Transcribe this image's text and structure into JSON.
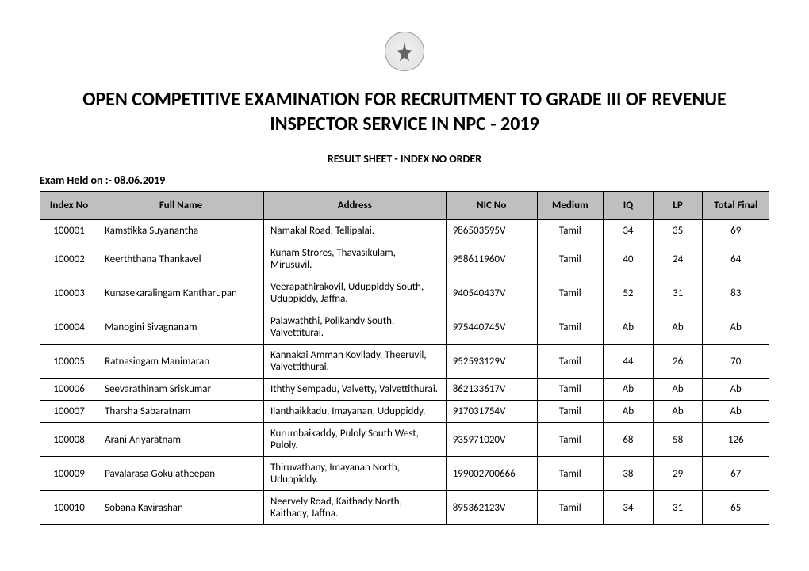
{
  "title": "OPEN COMPETITIVE EXAMINATION FOR RECRUITMENT TO GRADE III OF REVENUE INSPECTOR SERVICE IN NPC - 2019",
  "subtitle": "RESULT SHEET - INDEX NO ORDER",
  "exam_date": "Exam Held on :- 08.06.2019",
  "table": {
    "columns": [
      "Index No",
      "Full Name",
      "Address",
      "NIC No",
      "Medium",
      "IQ",
      "LP",
      "Total Final"
    ],
    "header_bg": "#bfbfbf",
    "border_color": "#000000",
    "rows": [
      {
        "index": "100001",
        "name": "Kamstikka Suyanantha",
        "address": "Namakal Road, Tellipalai.",
        "nic": "986503595V",
        "medium": "Tamil",
        "iq": "34",
        "lp": "35",
        "total": "69"
      },
      {
        "index": "100002",
        "name": "Keerththana Thankavel",
        "address": "Kunam Strores, Thavasikulam, Mirusuvil.",
        "nic": "958611960V",
        "medium": "Tamil",
        "iq": "40",
        "lp": "24",
        "total": "64"
      },
      {
        "index": "100003",
        "name": "Kunasekaralingam Kantharupan",
        "address": "Veerapathirakovil, Uduppiddy South, Uduppiddy, Jaffna.",
        "nic": "940540437V",
        "medium": "Tamil",
        "iq": "52",
        "lp": "31",
        "total": "83"
      },
      {
        "index": "100004",
        "name": "Manogini Sivagnanam",
        "address": "Palawaththi, Polikandy South, Valvettiturai.",
        "nic": "975440745V",
        "medium": "Tamil",
        "iq": "Ab",
        "lp": "Ab",
        "total": "Ab"
      },
      {
        "index": "100005",
        "name": "Ratnasingam Manimaran",
        "address": "Kannakai Amman Kovilady, Theeruvil, Valvettithurai.",
        "nic": "952593129V",
        "medium": "Tamil",
        "iq": "44",
        "lp": "26",
        "total": "70"
      },
      {
        "index": "100006",
        "name": "Seevarathinam Sriskumar",
        "address": "Iththy Sempadu, Valvetty, Valvettithurai.",
        "nic": "862133617V",
        "medium": "Tamil",
        "iq": "Ab",
        "lp": "Ab",
        "total": "Ab"
      },
      {
        "index": "100007",
        "name": "Tharsha Sabaratnam",
        "address": "Ilanthaikkadu, Imayanan, Uduppiddy.",
        "nic": "917031754V",
        "medium": "Tamil",
        "iq": "Ab",
        "lp": "Ab",
        "total": "Ab"
      },
      {
        "index": "100008",
        "name": "Arani Ariyaratnam",
        "address": "Kurumbaikaddy, Puloly South West, Puloly.",
        "nic": "935971020V",
        "medium": "Tamil",
        "iq": "68",
        "lp": "58",
        "total": "126"
      },
      {
        "index": "100009",
        "name": "Pavalarasa Gokulatheepan",
        "address": "Thiruvathany, Imayanan North, Uduppiddy.",
        "nic": "199002700666",
        "medium": "Tamil",
        "iq": "38",
        "lp": "29",
        "total": "67"
      },
      {
        "index": "100010",
        "name": "Sobana Kavirashan",
        "address": "Neervely Road, Kaithady North, Kaithady, Jaffna.",
        "nic": "895362123V",
        "medium": "Tamil",
        "iq": "34",
        "lp": "31",
        "total": "65"
      }
    ]
  }
}
